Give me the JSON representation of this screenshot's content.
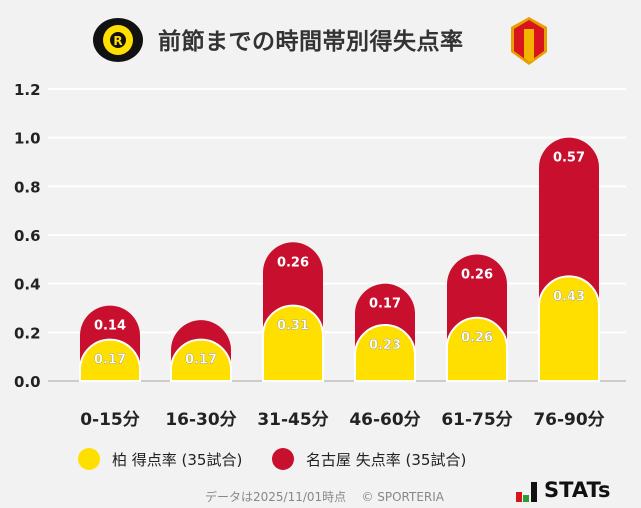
{
  "title": "前節までの時間帯別得失点率",
  "chart_data": {
    "type": "bar",
    "stacked": true,
    "categories": [
      "0-15分",
      "16-30分",
      "31-45分",
      "46-60分",
      "61-75分",
      "76-90分"
    ],
    "series": [
      {
        "name": "柏 得点率 (35試合)",
        "color": "#ffdf00",
        "values": [
          0.17,
          0.17,
          0.31,
          0.23,
          0.26,
          0.43
        ],
        "labels": [
          "0.17",
          "0.17",
          "0.31",
          "0.23",
          "0.26",
          "0.43"
        ]
      },
      {
        "name": "名古屋 失点率 (35試合)",
        "color": "#c8102e",
        "values": [
          0.14,
          0.08,
          0.26,
          0.17,
          0.26,
          0.57
        ],
        "labels": [
          "0.14",
          "",
          "0.26",
          "0.17",
          "0.26",
          "0.57"
        ]
      }
    ],
    "ylim": [
      0,
      1.2
    ],
    "yticks": [
      "0.0",
      "0.2",
      "0.4",
      "0.6",
      "0.8",
      "1.0",
      "1.2"
    ],
    "grid": true,
    "legend_position": "bottom"
  },
  "footer": {
    "note": "データは2025/11/01時点",
    "copyright": "© SPORTERIA",
    "brand": "STATs"
  },
  "logos": {
    "home": "KASHIWA REYSOL",
    "away": "Nagoya Grampus"
  }
}
